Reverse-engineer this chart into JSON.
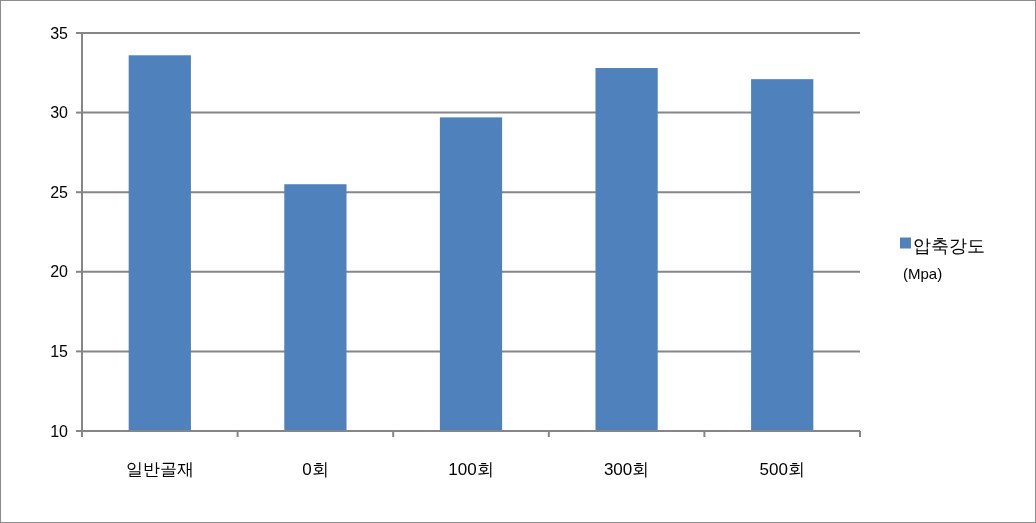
{
  "chart_data": {
    "type": "bar",
    "categories": [
      "일반골재",
      "0회",
      "100회",
      "300회",
      "500회"
    ],
    "series": [
      {
        "name": "압축강도 (Mpa)",
        "color": "#4f81bd",
        "values": [
          33.6,
          25.5,
          29.7,
          32.8,
          32.1
        ]
      }
    ],
    "ylim": [
      10,
      35
    ],
    "yticks": [
      10,
      15,
      20,
      25,
      30,
      35
    ],
    "grid": "y",
    "legend": "right"
  }
}
